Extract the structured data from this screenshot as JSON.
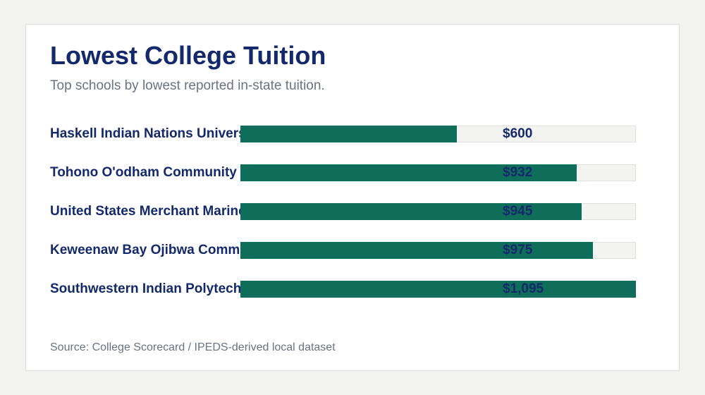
{
  "title": "Lowest College Tuition",
  "subtitle": "Top schools by lowest reported in-state tuition.",
  "source": "Source: College Scorecard / IPEDS-derived local dataset",
  "colors": {
    "background": "#f3f3f1",
    "card": "#ffffff",
    "bar": "#0f6e59",
    "track": "#f3f3f1",
    "text": "#13296b",
    "muted": "#6b7280"
  },
  "chart_data": {
    "type": "bar",
    "orientation": "horizontal",
    "title": "Lowest College Tuition",
    "subtitle": "Top schools by lowest reported in-state tuition.",
    "categories": [
      "Haskell Indian Nations University",
      "Tohono O'odham Community College",
      "United States Merchant Marine Academy",
      "Keweenaw Bay Ojibwa Community College",
      "Southwestern Indian Polytechnic Institute"
    ],
    "values": [
      600,
      932,
      945,
      975,
      1095
    ],
    "value_labels": [
      "$600",
      "$932",
      "$945",
      "$975",
      "$1,095"
    ],
    "xlim": [
      0,
      1095
    ],
    "grid": false,
    "legend": false
  }
}
